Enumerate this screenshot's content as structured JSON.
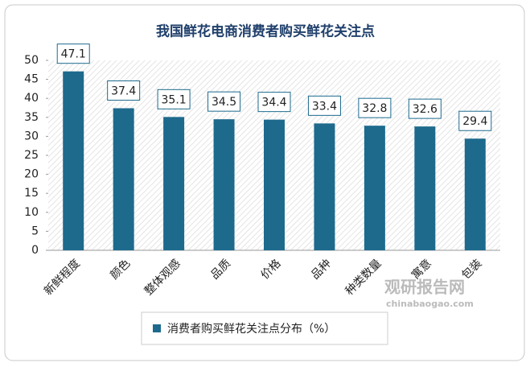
{
  "chart_data": {
    "type": "bar",
    "title": "我国鲜花电商消费者购买鲜花关注点",
    "categories": [
      "新鲜程度",
      "颜色",
      "整体观感",
      "品质",
      "价格",
      "品种",
      "种类数量",
      "寓意",
      "包装"
    ],
    "series": [
      {
        "name": "消费者购买鲜花关注点分布（%）",
        "color": "#1d6a8d",
        "values": [
          47.1,
          37.4,
          35.1,
          34.5,
          34.4,
          33.4,
          32.8,
          32.6,
          29.4
        ]
      }
    ],
    "ylim": [
      0,
      50
    ],
    "yticks": [
      0,
      5,
      10,
      15,
      20,
      25,
      30,
      35,
      40,
      45,
      50
    ],
    "legend": "bottom"
  },
  "watermark": {
    "name": "观研报告网",
    "url": "chinabaogao.com"
  }
}
